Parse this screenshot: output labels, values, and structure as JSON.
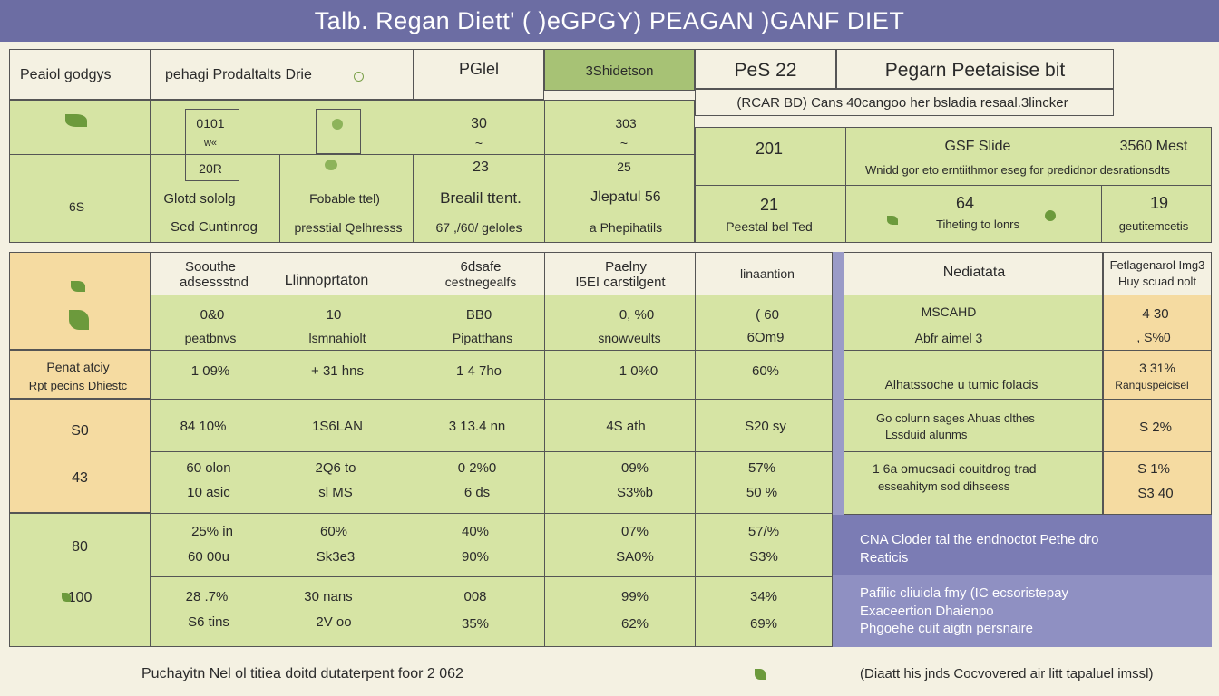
{
  "title": "Talb. Regan Diett' ( )eGPGY) PEAGAN )GANF DIET",
  "colors": {
    "title_bg": "#6c6da3",
    "green": "#d6e4a4",
    "green_dark": "#a7c275",
    "orange": "#f5dba1",
    "purple": "#7b7cb4",
    "cream": "#f4f1e2"
  },
  "top": {
    "h1": "Peaiol godgys",
    "h2": "pehagi Prodaltalts Drie",
    "h3": "PGlel",
    "h4": "3Shidetson",
    "h5": "PeS 22",
    "h6": "Pegarn Peetaisise bit",
    "h7": "(RCAR BD) Cans 40cangoo her bsladia resaal.3lincker",
    "row_left_label": "6S",
    "c1": [
      "0101",
      "w«",
      "20R",
      "Glotd sololg",
      "Sed Cuntinrog"
    ],
    "c2": [
      "Fobable ttel)",
      "presstial Qelhresss"
    ],
    "c3": [
      "30",
      "~",
      "23",
      "Brealil ttent.",
      "67 ,/60/ geloles"
    ],
    "c4": [
      "303",
      "~",
      "25",
      "Jlepatul 56",
      "a Phepihatils"
    ],
    "r1": [
      "201",
      "GSF Slide",
      "3560 Mest",
      "Wnidd gor eto erntiithmor eseg for predidnor desrationsdts"
    ],
    "r2": [
      "21",
      "64",
      "19",
      "Peestal bel Ted",
      "Tiheting to lonrs",
      "geutitemcetis"
    ]
  },
  "mid_header": {
    "h1a": "Soouthe",
    "h1b": "adsessstnd",
    "h2": "Llinnoprtaton",
    "h3a": "6dsafe",
    "h3b": "cestnegealfs",
    "h4a": "Paelny",
    "h4b": "I5EI carstilgent",
    "h5": "linaantion",
    "h6": "Nediatata",
    "h7a": "Fetlagenarol Img3",
    "h7b": "Huy scuad nolt"
  },
  "row_a": {
    "c1": [
      "0&0",
      "peatbnvs"
    ],
    "c2": [
      "10",
      "lsmnahiolt"
    ],
    "c3": [
      "BB0",
      "Pipatthans"
    ],
    "c4": [
      "0, %0",
      "snowveults"
    ],
    "c5": [
      "( 60",
      "6Om9"
    ],
    "c6": [
      "MSCAHD",
      "Abfr aimel 3"
    ],
    "c7": [
      "4 30",
      ", S%0"
    ]
  },
  "row_b": {
    "label_a": "Penat atciy",
    "label_b": "Rpt pecins Dhiestc",
    "c1": "1 09%",
    "c2": "+ 31 hns",
    "c3": "1 4 7ho",
    "c4": "1 0%0",
    "c5": "60%",
    "c6": "Alhatssoche u tumic folacis",
    "c7a": "3 31%",
    "c7b": "Ranquspeicisel"
  },
  "row_c": {
    "label_a": "S0",
    "label_b": "43",
    "c1": [
      "84 10%",
      "60 olon",
      "10 asic"
    ],
    "c2": [
      "1S6LAN",
      "2Q6 to",
      "sl MS"
    ],
    "c3": [
      "3 13.4 nn",
      "0 2%0",
      "6 ds"
    ],
    "c4": [
      "4S ath",
      "09%",
      "S3%b"
    ],
    "c5": [
      "S20 sy",
      "57%",
      "50 %"
    ],
    "c6": [
      "Go colunn sages Ahuas clthes",
      "Lssduid alunms",
      "1 6a omucsadi couitdrog trad",
      "esseahitym sod dihseess"
    ],
    "c7": [
      "S 2%",
      "S 1%",
      "S3 40"
    ]
  },
  "row_d": {
    "label_a": "80",
    "label_b": "100",
    "c1": [
      "25% in",
      "60 00u",
      "28 .7%",
      "S6 tins"
    ],
    "c2": [
      "60%",
      "Sk3e3",
      "30 nans",
      "2V oo"
    ],
    "c3": [
      "40%",
      "90%",
      "008",
      "35%"
    ],
    "c4": [
      "07%",
      "SA0%",
      "99%",
      "62%"
    ],
    "c5": [
      "57/%",
      "S3%",
      "34%",
      "69%"
    ],
    "p1": "CNA Cloder tal the endnoctot Pethe dro",
    "p2": "Reaticis",
    "p3": "Pafilic cliuicla fmy (IC ecsoristepay",
    "p4": "Exaceertion Dhaienpo",
    "p5": "Phgoehe cuit aigtn persnaire"
  },
  "footer": {
    "left": "Puchayitn Nel ol titiea doitd dutaterpent foor 2 062",
    "right": "(Diaatt his jnds Cocvovered air litt tapaluel imssl)"
  }
}
